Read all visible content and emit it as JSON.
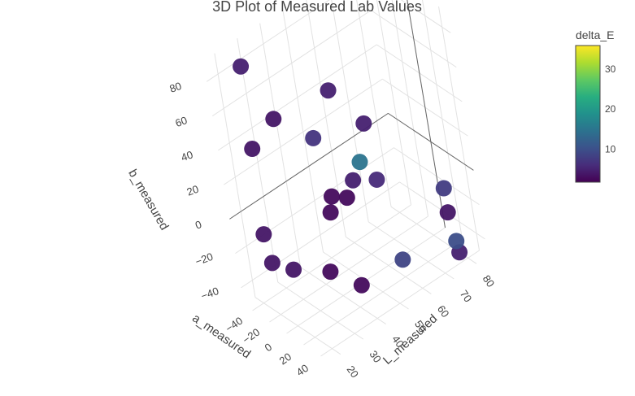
{
  "chart_data": {
    "type": "scatter3d",
    "title": "3D Plot of Measured Lab Values",
    "axes": {
      "a": {
        "label": "a_measured",
        "ticks": [
          -40,
          -20,
          0,
          20,
          40
        ],
        "range": [
          -50,
          50
        ]
      },
      "b": {
        "label": "b_measured",
        "ticks": [
          -40,
          -20,
          0,
          20,
          40,
          60,
          80
        ],
        "range": [
          -50,
          92
        ]
      },
      "L": {
        "label": "L_measured",
        "ticks": [
          20,
          30,
          40,
          50,
          60,
          70,
          80
        ],
        "range": [
          15,
          85
        ]
      }
    },
    "colorbar": {
      "title": "delta_E",
      "ticks": [
        10,
        20,
        30
      ],
      "range": [
        2,
        36
      ],
      "colorscale": "viridis"
    },
    "points": [
      {
        "a": -35,
        "b": 85,
        "L": 25,
        "dE": 5
      },
      {
        "a": -20,
        "b": 55,
        "L": 30,
        "dE": 4
      },
      {
        "a": -28,
        "b": 42,
        "L": 22,
        "dE": 4
      },
      {
        "a": -8,
        "b": 58,
        "L": 50,
        "dE": 5
      },
      {
        "a": -5,
        "b": 40,
        "L": 40,
        "dE": 7
      },
      {
        "a": 15,
        "b": 42,
        "L": 55,
        "dE": 5
      },
      {
        "a": 18,
        "b": 25,
        "L": 50,
        "dE": 15
      },
      {
        "a": 5,
        "b": 10,
        "L": 50,
        "dE": 5
      },
      {
        "a": 0,
        "b": 0,
        "L": 48,
        "dE": 3
      },
      {
        "a": -5,
        "b": -5,
        "L": 42,
        "dE": 3
      },
      {
        "a": -10,
        "b": 0,
        "L": 45,
        "dE": 3
      },
      {
        "a": 10,
        "b": 5,
        "L": 58,
        "dE": 6
      },
      {
        "a": -25,
        "b": -5,
        "L": 20,
        "dE": 4
      },
      {
        "a": -20,
        "b": -20,
        "L": 20,
        "dE": 4
      },
      {
        "a": -10,
        "b": -25,
        "L": 25,
        "dE": 4
      },
      {
        "a": 5,
        "b": -30,
        "L": 35,
        "dE": 3
      },
      {
        "a": 10,
        "b": -45,
        "L": 45,
        "dE": 3
      },
      {
        "a": 20,
        "b": -40,
        "L": 60,
        "dE": 9
      },
      {
        "a": 40,
        "b": -5,
        "L": 75,
        "dE": 8
      },
      {
        "a": 30,
        "b": -25,
        "L": 78,
        "dE": 4
      },
      {
        "a": 35,
        "b": -40,
        "L": 78,
        "dE": 10
      },
      {
        "a": 30,
        "b": -50,
        "L": 80,
        "dE": 5
      }
    ]
  }
}
